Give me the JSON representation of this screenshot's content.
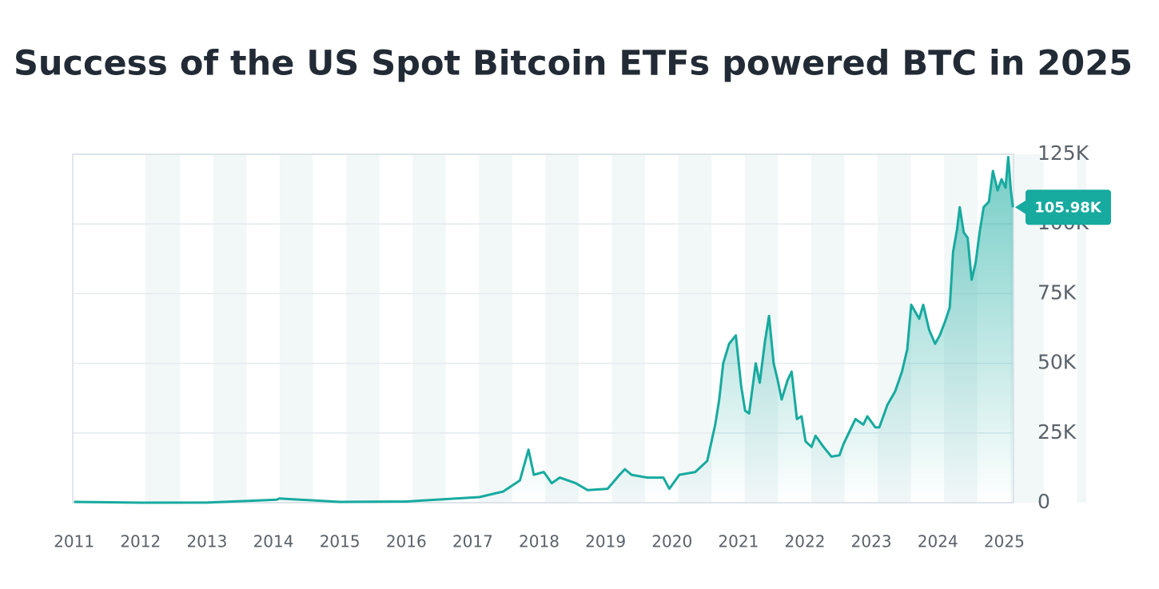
{
  "chart_data": {
    "type": "line",
    "title": "Success of the US Spot Bitcoin ETFs powered BTC in 2025",
    "x": [
      2011.0,
      2012.0,
      2013.0,
      2014.05,
      2014.09,
      2015.0,
      2016.0,
      2017.1,
      2017.46,
      2017.71,
      2017.84,
      2017.92,
      2018.07,
      2018.19,
      2018.31,
      2018.55,
      2018.73,
      2019.03,
      2019.21,
      2019.29,
      2019.39,
      2019.63,
      2019.87,
      2019.96,
      2020.11,
      2020.35,
      2020.53,
      2020.65,
      2020.71,
      2020.77,
      2020.86,
      2020.96,
      2021.04,
      2021.1,
      2021.16,
      2021.26,
      2021.32,
      2021.4,
      2021.46,
      2021.53,
      2021.59,
      2021.65,
      2021.74,
      2021.8,
      2021.88,
      2021.95,
      2022.01,
      2022.1,
      2022.16,
      2022.28,
      2022.4,
      2022.52,
      2022.58,
      2022.7,
      2022.76,
      2022.88,
      2022.94,
      2023.06,
      2023.12,
      2023.24,
      2023.36,
      2023.46,
      2023.54,
      2023.6,
      2023.72,
      2023.78,
      2023.87,
      2023.96,
      2024.03,
      2024.11,
      2024.18,
      2024.23,
      2024.29,
      2024.33,
      2024.39,
      2024.45,
      2024.51,
      2024.57,
      2024.63,
      2024.69,
      2024.77,
      2024.83,
      2024.9,
      2024.96,
      2025.02,
      2025.06,
      2025.1,
      2025.13
    ],
    "values": [
      300,
      5,
      15,
      1100,
      1500,
      300,
      430,
      2000,
      4000,
      8000,
      19000,
      10000,
      11000,
      7000,
      9000,
      7000,
      4500,
      5000,
      10000,
      12000,
      10000,
      9000,
      9000,
      5000,
      10000,
      11000,
      15000,
      28000,
      37000,
      50000,
      57000,
      60000,
      42000,
      33000,
      32000,
      50000,
      43000,
      58000,
      67000,
      50000,
      44000,
      37000,
      44000,
      47000,
      30000,
      31000,
      22000,
      20000,
      24000,
      20000,
      16500,
      17000,
      21000,
      27000,
      30000,
      28000,
      31000,
      27000,
      27000,
      35000,
      40000,
      47000,
      55000,
      71000,
      66000,
      71000,
      62000,
      57000,
      60000,
      65000,
      70000,
      90000,
      98000,
      106000,
      97000,
      95000,
      80000,
      86000,
      97000,
      106000,
      108000,
      119000,
      112000,
      116000,
      113000,
      124000,
      112000,
      105980
    ],
    "color": "#17aa9f",
    "current_price_label": "105.98K",
    "xlim": [
      2010.98,
      2025.14
    ],
    "xticks": [
      2011,
      2012,
      2013,
      2014,
      2015,
      2016,
      2017,
      2018,
      2019,
      2020,
      2021,
      2022,
      2023,
      2024,
      2025
    ],
    "ylim": [
      0,
      125000
    ],
    "yticks": [
      0,
      {
        "value": 25000,
        "label": "25K"
      },
      {
        "value": 50000,
        "label": "50K"
      },
      {
        "value": 75000,
        "label": "75K"
      },
      {
        "value": 100000,
        "label": "100K"
      },
      {
        "value": 125000,
        "label": "125K"
      }
    ],
    "grid": true
  }
}
